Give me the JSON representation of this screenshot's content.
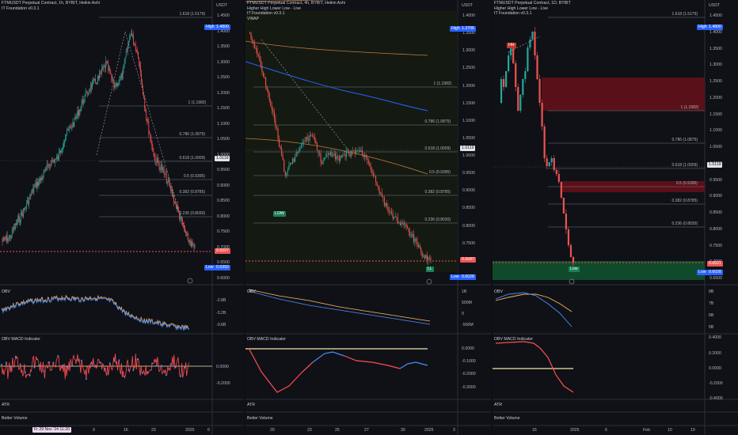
{
  "colors": {
    "up": "#26a69a",
    "down": "#ef5350",
    "obv": "#4a8cf7",
    "obvSignal": "#f5b458",
    "macdRed": "#ff4d4d",
    "macdBlue": "#4a8cf7",
    "zero": "#f2e6a6",
    "fib": "#9aa0ab",
    "demand": "#0f4a2a",
    "supply": "#5a1018"
  },
  "panels": [
    {
      "id": "p1",
      "title": [
        "FTMUSDT Perpetual Contract, 1h, BYBIT, Heikin Ashi",
        "IT Foundation v0.3.1"
      ],
      "price_axis": [
        "1.4500",
        "1.4000",
        "1.3500",
        "1.3000",
        "1.2500",
        "1.2000",
        "1.1500",
        "1.1000",
        "1.0500",
        "1.0000",
        "0.9500",
        "0.9000",
        "0.8500",
        "0.8000",
        "0.7500",
        "0.7000",
        "0.6500",
        "0.6000"
      ],
      "currency": "USDT",
      "fib": [
        "1.618 (1.5179)",
        "1 (1.1982)",
        "0.786 (1.0875)",
        "0.618 (1.0009)",
        "0.5 (0.9395)",
        "0.382 (0.8785)",
        "0.236 (0.8030)"
      ],
      "tags": {
        "high": "High",
        "high_val": "1.4800",
        "price": "1.0119",
        "last": "0.6597",
        "low": "Low",
        "low_val": "0.6393"
      },
      "obv": {
        "name": "OBV",
        "axis": [
          "-2.8B",
          "-3.2B",
          "-3.6B"
        ]
      },
      "macd": {
        "name": "OBV MACD Indicator",
        "axis": [
          "0.0000",
          "-0.2000"
        ]
      },
      "atr": "ATR",
      "bv": "Better Volume",
      "time_axis": [
        "9",
        "16",
        "23",
        "2025",
        "6"
      ],
      "cursor_date": "Fr 29 Nov '24  11:20"
    },
    {
      "id": "p2",
      "title": [
        "FTMUSDT Perpetual Contract, 4h, BYBIT, Heikin Ashi",
        "Higher High Lower Low - Live",
        "IT Foundation v0.3.1",
        "VWAP"
      ],
      "price_axis": [
        "1.4000",
        "1.3500",
        "1.3000",
        "1.2500",
        "1.2000",
        "1.1500",
        "1.1000",
        "1.0500",
        "1.0000",
        "0.9500",
        "0.9000",
        "0.8500",
        "0.8000",
        "0.7500",
        "0.7000",
        "0.6500"
      ],
      "currency": "USDT",
      "fib": [
        "1 (1.1982)",
        "0.786 (1.0875)",
        "0.618 (1.0009)",
        "0.5 (0.9395)",
        "0.382 (0.8785)",
        "0.236 (0.8030)"
      ],
      "tags": {
        "high": "High",
        "high_val": "1.3706",
        "price": "1.0119",
        "last": "0.6587",
        "low": "Low",
        "low_val": "0.6028",
        "low_mark": "LOW",
        "ll_mark": "LL"
      },
      "obv": {
        "name": "OBV",
        "axis": [
          "1B",
          "500M",
          "0",
          "-500M"
        ]
      },
      "macd": {
        "name": "OBV MACD Indicator",
        "axis": [
          "0.0000",
          "-0.1000",
          "-0.2000",
          "-0.3000"
        ]
      },
      "atr": "ATR",
      "bv": "Better Volume",
      "time_axis": [
        "20",
        "23",
        "25",
        "27",
        "30",
        "2025",
        "3"
      ]
    },
    {
      "id": "p3",
      "title": [
        "FTMUSDT Perpetual Contract, 1D, BYBIT",
        "Higher High Lower Low - Live",
        "IT Foundation v0.3.1"
      ],
      "price_axis": [
        "1.4500",
        "1.4000",
        "1.3500",
        "1.3000",
        "1.2500",
        "1.2000",
        "1.1500",
        "1.1000",
        "1.0500",
        "1.0000",
        "0.9500",
        "0.9000",
        "0.8500",
        "0.8000",
        "0.7500",
        "0.7000",
        "0.6500"
      ],
      "currency": "USDT",
      "fib": [
        "1.618 (1.5179)",
        "1 (1.1982)",
        "0.786 (1.0875)",
        "0.618 (1.0009)",
        "0.5 (0.9395)",
        "0.382 (0.8785)",
        "0.236 (0.8030)"
      ],
      "tags": {
        "high": "High",
        "high_val": "1.4800",
        "price": "1.0119",
        "last": "0.6621",
        "low": "Low",
        "low_val": "0.6028",
        "hh_mark": "HH",
        "low_mark": "Low"
      },
      "obv": {
        "name": "OBV",
        "axis": [
          "8B",
          "7B",
          "6B",
          "5B"
        ]
      },
      "macd": {
        "name": "OBV MACD Indicator",
        "axis": [
          "0.4000",
          "0.2000",
          "0.0000",
          "-0.2000",
          "-0.4000"
        ]
      },
      "atr": "ATR",
      "bv": "Better Volume",
      "time_axis": [
        "16",
        "2025",
        "6",
        "Feb",
        "10",
        "19"
      ]
    }
  ]
}
